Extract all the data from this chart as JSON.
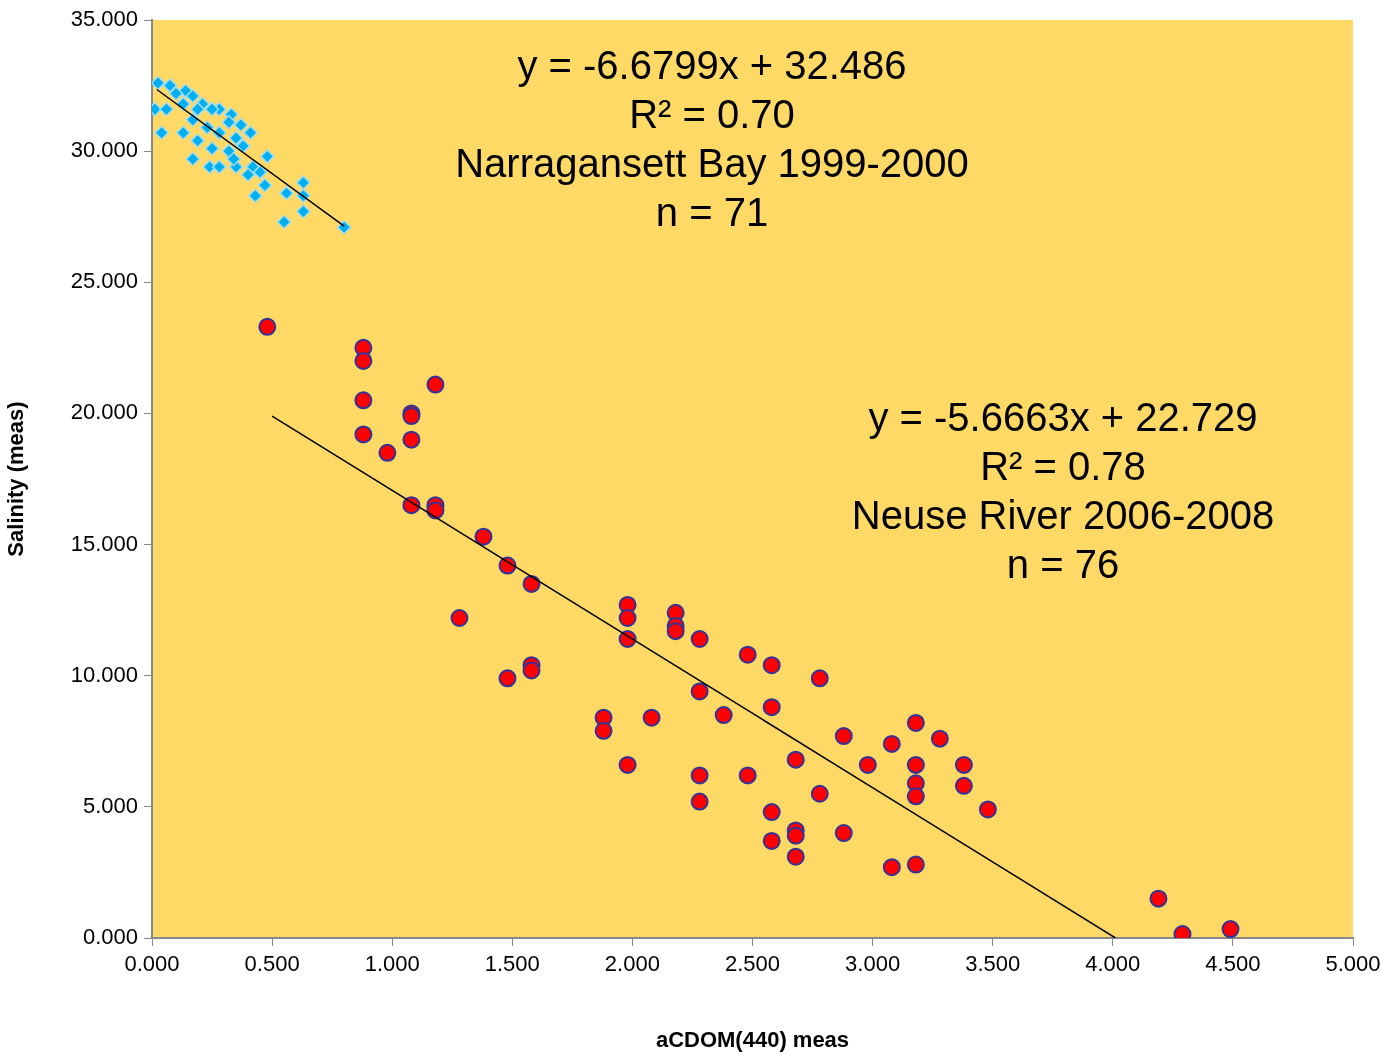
{
  "chart_data": {
    "type": "scatter",
    "xlabel": "aCDOM(440) meas",
    "ylabel": "Salinity (meas)",
    "xlim": [
      0,
      5
    ],
    "ylim": [
      0,
      35
    ],
    "xticks": [
      {
        "value": 0,
        "label": "0.000"
      },
      {
        "value": 0.5,
        "label": "0.500"
      },
      {
        "value": 1,
        "label": "1.000"
      },
      {
        "value": 1.5,
        "label": "1.500"
      },
      {
        "value": 2,
        "label": "2.000"
      },
      {
        "value": 2.5,
        "label": "2.500"
      },
      {
        "value": 3,
        "label": "3.000"
      },
      {
        "value": 3.5,
        "label": "3.500"
      },
      {
        "value": 4,
        "label": "4.000"
      },
      {
        "value": 4.5,
        "label": "4.500"
      },
      {
        "value": 5,
        "label": "5.000"
      }
    ],
    "yticks": [
      {
        "value": 0,
        "label": "0.000"
      },
      {
        "value": 5,
        "label": "5.000"
      },
      {
        "value": 10,
        "label": "10.000"
      },
      {
        "value": 15,
        "label": "15.000"
      },
      {
        "value": 20,
        "label": "20.000"
      },
      {
        "value": 25,
        "label": "25.000"
      },
      {
        "value": 30,
        "label": "30.000"
      },
      {
        "value": 35,
        "label": "35.000"
      }
    ],
    "grid": false,
    "legend": false,
    "annotations": [
      "y = -6.6799x + 32.486\nR² = 0.70\nNarragansett Bay 1999-2000\nn = 71",
      "y = -5.6663x + 22.729\nR² = 0.78\nNeuse River 2006-2008\nn = 76"
    ],
    "series": [
      {
        "marker": "diamond",
        "color": "#00b0f0",
        "x": [
          0.025,
          0.075,
          0.14,
          0.17,
          0.1,
          0.012,
          0.06,
          0.04,
          0.13,
          0.19,
          0.17,
          0.24,
          0.28,
          0.35,
          0.25,
          0.28,
          0.35,
          0.41,
          0.37,
          0.28,
          0.33,
          0.25,
          0.21,
          0.23,
          0.17,
          0.19,
          0.13,
          0.38,
          0.32,
          0.34,
          0.42,
          0.45,
          0.48,
          0.47,
          0.43,
          0.56,
          0.63,
          0.63,
          0.63,
          0.55,
          0.8,
          0.4,
          0.32
        ],
        "values": [
          32.6,
          32.5,
          32.3,
          32.1,
          32.2,
          31.6,
          31.6,
          30.7,
          30.7,
          30.4,
          29.7,
          29.4,
          29.4,
          29.4,
          30.1,
          30.7,
          30.5,
          30.7,
          31.0,
          31.6,
          31.4,
          31.6,
          31.8,
          30.9,
          31.2,
          31.6,
          31.8,
          30.2,
          30.0,
          29.7,
          29.4,
          29.2,
          29.8,
          28.7,
          28.3,
          28.4,
          28.8,
          28.3,
          27.7,
          27.3,
          27.1,
          29.1,
          31.1
        ]
      },
      {
        "marker": "circle",
        "color": "#ff0000",
        "x": [
          0.48,
          0.88,
          0.88,
          0.88,
          0.88,
          0.98,
          1.08,
          1.08,
          1.08,
          1.08,
          1.18,
          1.18,
          1.18,
          1.38,
          1.28,
          1.48,
          1.58,
          1.48,
          1.58,
          1.58,
          1.88,
          1.88,
          1.98,
          1.98,
          1.98,
          1.98,
          2.08,
          2.18,
          2.18,
          2.18,
          2.28,
          2.28,
          2.28,
          2.28,
          2.38,
          2.48,
          2.48,
          2.58,
          2.58,
          2.58,
          2.58,
          2.68,
          2.68,
          2.68,
          2.68,
          2.78,
          2.78,
          2.88,
          2.88,
          2.98,
          3.08,
          3.08,
          3.18,
          3.18,
          3.18,
          3.18,
          3.18,
          3.28,
          3.38,
          3.38,
          3.48,
          4.19,
          4.29,
          4.49
        ],
        "values": [
          23.3,
          22.5,
          22.0,
          20.5,
          19.2,
          18.5,
          20.0,
          19.9,
          19.0,
          16.5,
          21.1,
          16.5,
          16.3,
          15.3,
          12.2,
          14.2,
          13.5,
          9.9,
          10.4,
          10.2,
          8.4,
          7.9,
          12.7,
          12.2,
          11.4,
          6.6,
          8.4,
          12.4,
          11.9,
          11.7,
          11.4,
          9.4,
          6.2,
          5.2,
          8.5,
          10.8,
          6.2,
          10.4,
          8.8,
          4.8,
          3.7,
          6.8,
          4.1,
          3.9,
          3.1,
          9.9,
          5.5,
          7.7,
          4.0,
          6.6,
          7.4,
          2.7,
          8.2,
          6.6,
          5.9,
          5.4,
          2.8,
          7.6,
          6.6,
          5.8,
          4.9,
          1.5,
          0.15,
          0.34
        ]
      },
      {
        "type": "line",
        "marker": "none",
        "line_style": "solid",
        "color": "#000000",
        "x": [
          0.02,
          0.8
        ],
        "values": [
          32.35,
          27.14
        ]
      },
      {
        "type": "line",
        "marker": "none",
        "line_style": "solid",
        "color": "#000000",
        "x": [
          0.5,
          4.011
        ],
        "values": [
          19.9,
          0.0
        ]
      }
    ]
  }
}
